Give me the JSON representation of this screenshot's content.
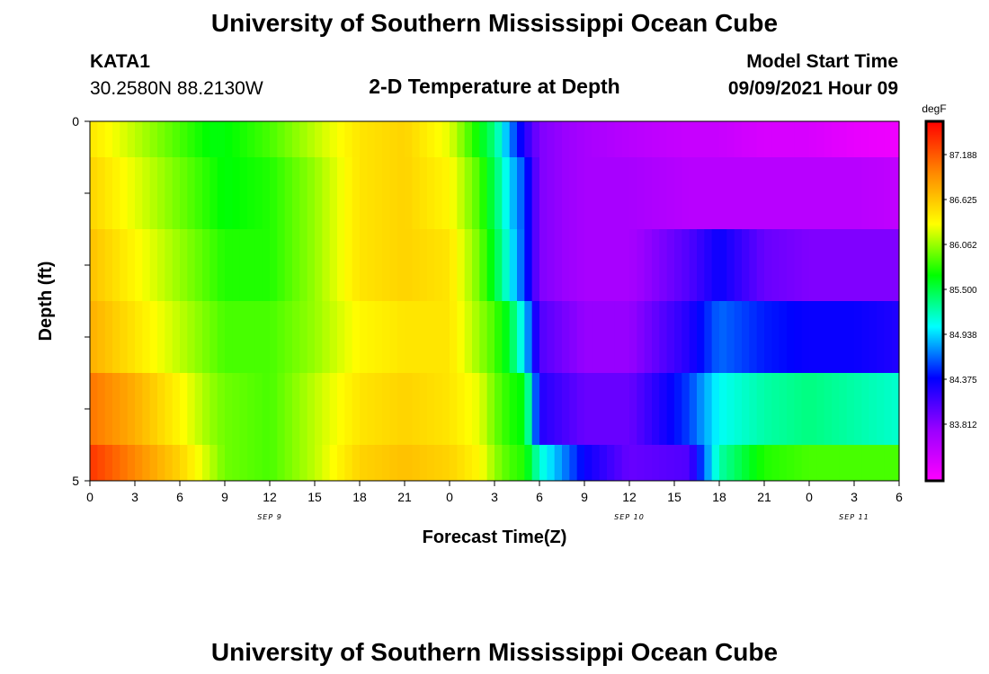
{
  "title": "University of Southern Mississippi Ocean Cube",
  "footer_title": "University of Southern Mississippi Ocean Cube",
  "station": {
    "name": "KATA1",
    "coords": "30.2580N  88.2130W"
  },
  "subtitle": "2-D Temperature at Depth",
  "model_start": {
    "label": "Model Start Time",
    "value": "09/09/2021 Hour 09"
  },
  "chart_data": {
    "type": "heatmap",
    "title": "2-D Temperature at Depth",
    "xlabel": "Forecast Time(Z)",
    "ylabel": "Depth (ft)",
    "x_unit": "hours from 09/09 00Z",
    "x_range": [
      0,
      54
    ],
    "y_range": [
      0,
      5
    ],
    "y_inverted": true,
    "x_tick_labels": [
      "0",
      "3",
      "6",
      "9",
      "12",
      "15",
      "18",
      "21",
      "0",
      "3",
      "6",
      "9",
      "12",
      "15",
      "18",
      "21",
      "0",
      "3",
      "6"
    ],
    "y_tick_labels": [
      "0",
      "5"
    ],
    "date_labels": [
      {
        "text": "SEP 9",
        "hour": 12
      },
      {
        "text": "SEP 10",
        "hour": 36
      },
      {
        "text": "SEP 11",
        "hour": 51
      }
    ],
    "colorbar": {
      "unit": "degF",
      "min": 83.25,
      "max": 87.75,
      "labels": [
        "87.188",
        "86.625",
        "86.062",
        "85.500",
        "84.938",
        "84.375",
        "83.812"
      ],
      "colors": [
        "#ff00ff",
        "#9900ff",
        "#0000ff",
        "#00ffff",
        "#00ff00",
        "#ffff00",
        "#ff8800",
        "#ff0000"
      ]
    },
    "hours": [
      0,
      3,
      6,
      8,
      9,
      12,
      15,
      18,
      21,
      24,
      26,
      27,
      28,
      29,
      30,
      33,
      36,
      40,
      42,
      45,
      48,
      51,
      54
    ],
    "rows": [
      {
        "depth_range": [
          0.0,
          0.5
        ],
        "values": [
          86.6,
          86.3,
          86.0,
          85.8,
          85.8,
          86.0,
          86.3,
          86.6,
          86.7,
          86.4,
          85.8,
          85.5,
          84.9,
          84.4,
          84.0,
          83.8,
          83.7,
          83.6,
          83.6,
          83.5,
          83.5,
          83.4,
          83.35
        ]
      },
      {
        "depth_range": [
          0.5,
          1.5
        ],
        "values": [
          86.7,
          86.4,
          86.1,
          85.9,
          85.8,
          85.9,
          86.2,
          86.6,
          86.7,
          86.5,
          86.0,
          85.6,
          85.1,
          84.7,
          84.0,
          83.8,
          83.8,
          83.7,
          83.7,
          83.7,
          83.7,
          83.7,
          83.65
        ]
      },
      {
        "depth_range": [
          1.5,
          2.5
        ],
        "values": [
          86.8,
          86.5,
          86.2,
          86.0,
          85.9,
          85.9,
          86.2,
          86.6,
          86.7,
          86.6,
          86.1,
          85.7,
          85.2,
          84.7,
          84.0,
          83.8,
          83.8,
          84.2,
          84.5,
          84.1,
          84.0,
          84.0,
          84.0
        ]
      },
      {
        "depth_range": [
          2.5,
          3.5
        ],
        "values": [
          86.9,
          86.6,
          86.3,
          86.1,
          86.0,
          86.0,
          86.2,
          86.5,
          86.6,
          86.6,
          86.2,
          86.0,
          85.7,
          85.1,
          84.2,
          83.9,
          83.9,
          84.4,
          84.8,
          84.6,
          84.5,
          84.5,
          84.4
        ]
      },
      {
        "depth_range": [
          3.5,
          4.5
        ],
        "values": [
          87.2,
          86.9,
          86.5,
          86.2,
          86.1,
          86.0,
          86.3,
          86.6,
          86.7,
          86.6,
          86.4,
          86.1,
          85.9,
          85.8,
          84.4,
          84.1,
          84.1,
          84.7,
          85.2,
          85.4,
          85.5,
          85.4,
          85.3
        ]
      },
      {
        "depth_range": [
          4.5,
          5.0
        ],
        "values": [
          87.5,
          87.1,
          86.7,
          86.3,
          86.1,
          86.0,
          86.3,
          86.7,
          86.8,
          86.7,
          86.5,
          86.2,
          86.0,
          85.9,
          85.3,
          84.5,
          84.1,
          84.2,
          85.4,
          85.9,
          86.0,
          86.0,
          86.0
        ]
      }
    ]
  }
}
